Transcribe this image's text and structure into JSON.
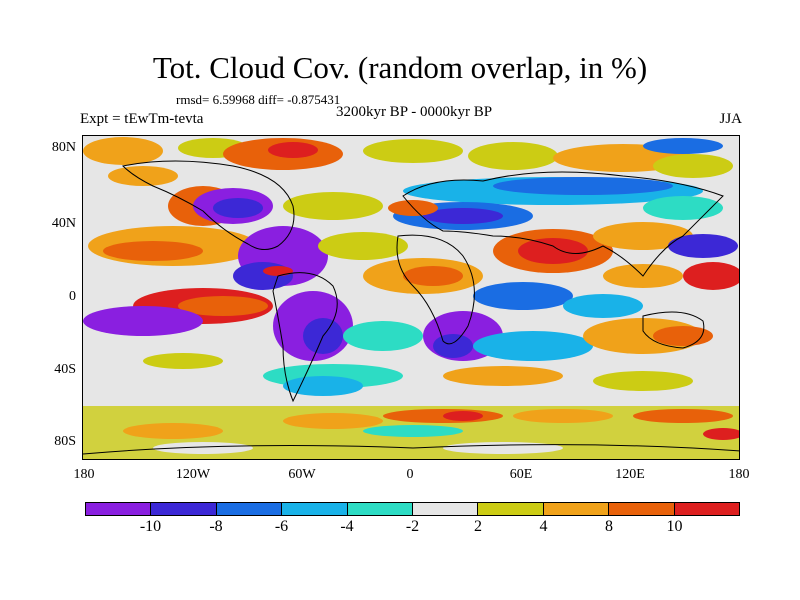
{
  "title": "Tot. Cloud Cov. (random overlap, in %)",
  "stats": "rmsd= 6.59968 diff= -0.875431",
  "period": "3200kyr BP - 0000kyr BP",
  "experiment": "Expt = tEwTm-tevta",
  "season": "JJA",
  "map": {
    "latitude_labels": [
      "80N",
      "40N",
      "0",
      "40S",
      "80S"
    ],
    "longitude_labels": [
      "180",
      "120W",
      "60W",
      "0",
      "60E",
      "120E",
      "180"
    ],
    "background_color": "#e6e6e6",
    "coastline_color": "#000000"
  },
  "colorbar": {
    "levels": [
      "-10",
      "-8",
      "-6",
      "-4",
      "-2",
      "2",
      "4",
      "8",
      "10"
    ],
    "colors": [
      "#8a1fe0",
      "#3c28d6",
      "#1a6de3",
      "#19b2e8",
      "#2ddcc4",
      "#e6e6e6",
      "#cccc14",
      "#f0a21a",
      "#e8610a",
      "#dd1f1f"
    ]
  }
}
